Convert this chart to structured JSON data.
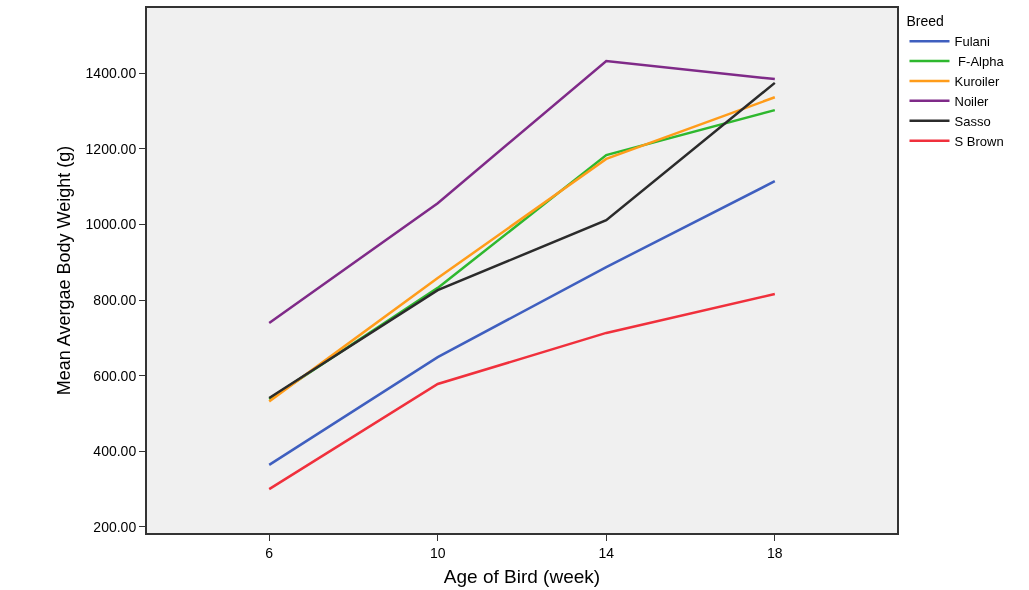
{
  "chart_data": {
    "type": "line",
    "xlabel": "Age of Bird (week)",
    "ylabel": "Mean Avergae Body Weight (g)",
    "legend_title": "Breed",
    "legend": "right",
    "grid": false,
    "marker": "none",
    "line_style": "solid",
    "x": [
      6,
      10,
      14,
      18
    ],
    "xlim": [
      3.1,
      20.9
    ],
    "xticks": [
      6,
      10,
      14,
      18
    ],
    "ylim": [
      184,
      1572
    ],
    "yticks": [
      {
        "value": 200,
        "label": "200.00"
      },
      {
        "value": 400,
        "label": "400.00"
      },
      {
        "value": 600,
        "label": "600.00"
      },
      {
        "value": 800,
        "label": "800.00"
      },
      {
        "value": 1000,
        "label": "1000.00"
      },
      {
        "value": 1200,
        "label": "1200.00"
      },
      {
        "value": 1400,
        "label": "1400.00"
      }
    ],
    "series": [
      {
        "name": "Fulani",
        "color": "#3f5fbf",
        "values": [
          364,
          649,
          887,
          1114
        ]
      },
      {
        "name": " F-Alpha",
        "color": "#2eb82e",
        "values": [
          538,
          832,
          1183,
          1302
        ]
      },
      {
        "name": "Kuroiler",
        "color": "#ff9c1a",
        "values": [
          532,
          858,
          1173,
          1336
        ]
      },
      {
        "name": "Noiler",
        "color": "#7f2a88",
        "values": [
          739,
          1056,
          1432,
          1384
        ]
      },
      {
        "name": "Sasso",
        "color": "#2b2b2b",
        "values": [
          541,
          826,
          1011,
          1374
        ]
      },
      {
        "name": "S Brown",
        "color": "#f0303c",
        "values": [
          300,
          578,
          713,
          816
        ]
      }
    ]
  }
}
